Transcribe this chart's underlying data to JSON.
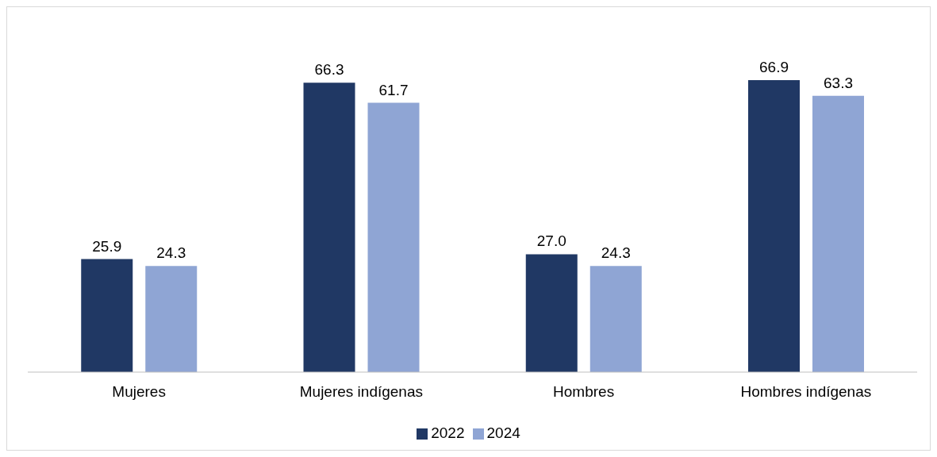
{
  "chart_data": {
    "type": "bar",
    "categories": [
      "Mujeres",
      "Mujeres indígenas",
      "Hombres",
      "Hombres indígenas"
    ],
    "series": [
      {
        "name": "2022",
        "color": "#203864",
        "values": [
          25.9,
          66.3,
          27.0,
          66.9
        ],
        "value_labels": [
          "25.9",
          "66.3",
          "27.0",
          "66.9"
        ]
      },
      {
        "name": "2024",
        "color": "#8fa5d4",
        "values": [
          24.3,
          61.7,
          24.3,
          63.3
        ],
        "value_labels": [
          "24.3",
          "61.7",
          "24.3",
          "63.3"
        ]
      }
    ],
    "legend": "bottom",
    "grid": false
  }
}
